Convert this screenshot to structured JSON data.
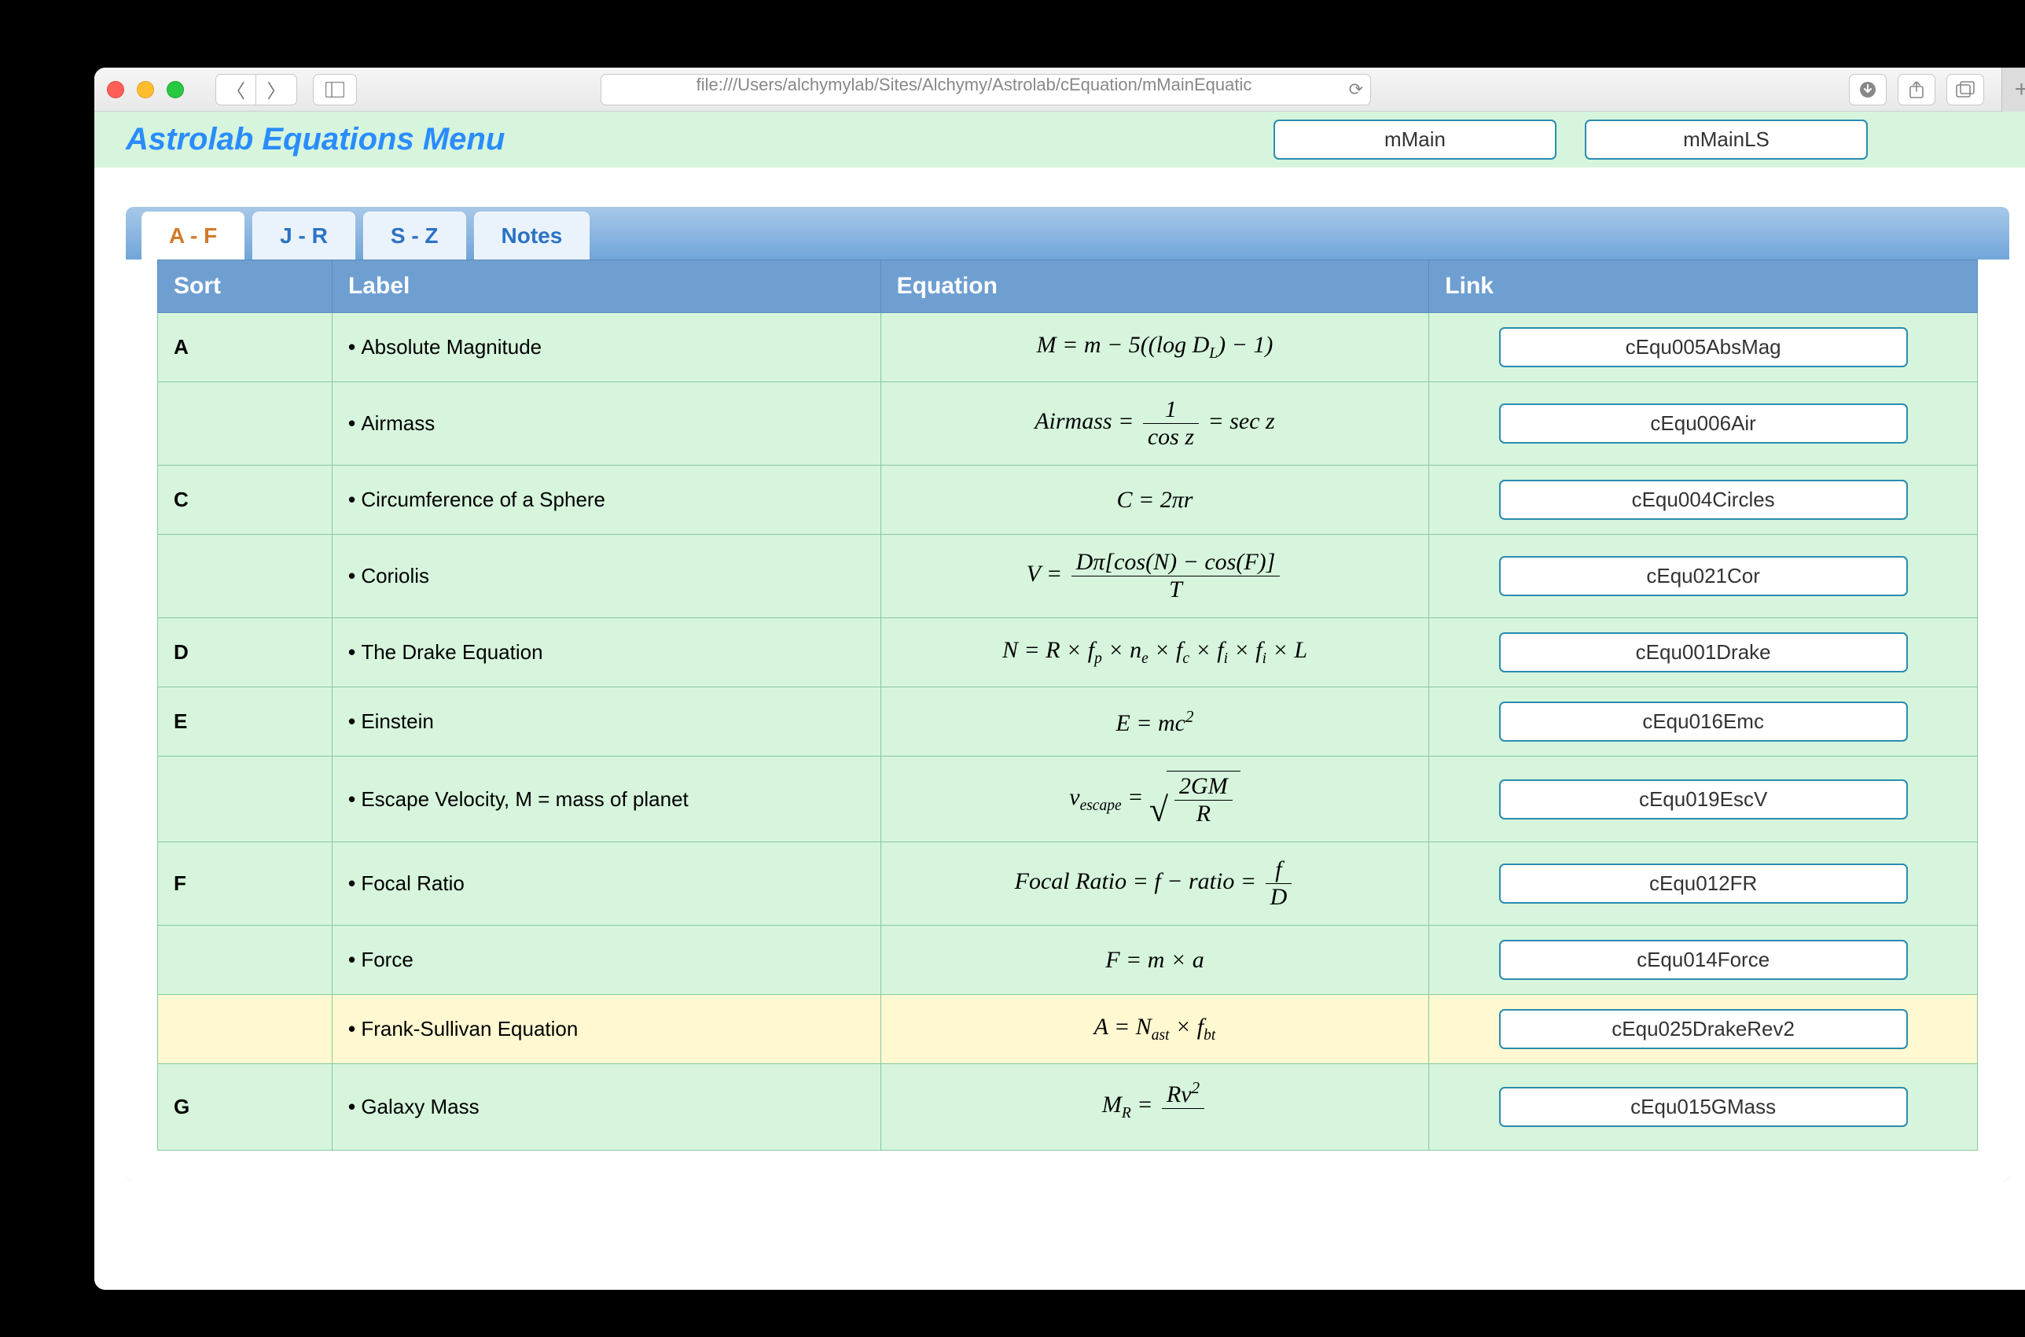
{
  "browser": {
    "url": "file:///Users/alchymylab/Sites/Alchymy/Astrolab/cEquation/mMainEquatic"
  },
  "header": {
    "title": "Astrolab Equations Menu",
    "buttons": [
      "mMain",
      "mMainLS"
    ]
  },
  "tabs": {
    "items": [
      "A - F",
      "J - R",
      "S - Z",
      "Notes"
    ],
    "active_index": 0
  },
  "columns": [
    "Sort",
    "Label",
    "Equation",
    "Link"
  ],
  "rows": [
    {
      "sort": "A",
      "label": "Absolute Magnitude",
      "eq_html": "<span class='eq'><i>M</i> = <i>m</i> − 5((log <i>D<sub>L</sub></i>) − 1)</span>",
      "link": "cEqu005AbsMag",
      "alt": false
    },
    {
      "sort": "",
      "label": "Airmass",
      "eq_html": "<span class='eq'><i>Airmass</i> = <span class='frac'><span class='num'>1</span><span class='den'>cos <i>z</i></span></span> = <i>sec z</i></span>",
      "link": "cEqu006Air",
      "alt": false
    },
    {
      "sort": "C",
      "label": "Circumference of a Sphere",
      "eq_html": "<span class='eq'><i>C</i> = 2<i>πr</i></span>",
      "link": "cEqu004Circles",
      "alt": false
    },
    {
      "sort": "",
      "label": "Coriolis",
      "eq_html": "<span class='eq'><i>V</i> = <span class='frac'><span class='num'><i>Dπ</i>[<i>cos</i>(<i>N</i>) − <i>cos</i>(<i>F</i>)]</span><span class='den'><i>T</i></span></span></span>",
      "link": "cEqu021Cor",
      "alt": false
    },
    {
      "sort": "D",
      "label": "The Drake Equation",
      "eq_html": "<span class='eq'><i>N</i> = <i>R</i> × <i>f<sub>p</sub></i> × <i>n<sub>e</sub></i> × <i>f<sub>c</sub></i> × <i>f<sub>i</sub></i> × <i>f<sub>i</sub></i> × <i>L</i></span>",
      "link": "cEqu001Drake",
      "alt": false
    },
    {
      "sort": "E",
      "label": "Einstein",
      "eq_html": "<span class='eq'><i>E</i> = <i>mc</i><sup>2</sup></span>",
      "link": "cEqu016Emc",
      "alt": false
    },
    {
      "sort": "",
      "label": "Escape Velocity, M = mass of planet",
      "eq_html": "<span class='eq'><i>v<sub>escape</sub></i> = <span class='sqrt-wrap'><span class='sqrt-sym'>√</span><span class='sqrt-body'><span class='frac'><span class='num'>2<i>GM</i></span><span class='den'><i>R</i></span></span></span></span></span>",
      "link": "cEqu019EscV",
      "alt": false
    },
    {
      "sort": "F",
      "label": "Focal Ratio",
      "eq_html": "<span class='eq'><i>Focal Ratio</i> = <i>f</i> − <i>ratio</i> = <span class='frac'><span class='num'><i>f</i></span><span class='den'><i>D</i></span></span></span>",
      "link": "cEqu012FR",
      "alt": false
    },
    {
      "sort": "",
      "label": "Force",
      "eq_html": "<span class='eq'><i>F</i> = <i>m</i> × <i>a</i></span>",
      "link": "cEqu014Force",
      "alt": false
    },
    {
      "sort": "",
      "label": "Frank-Sullivan Equation",
      "eq_html": "<span class='eq'><i>A</i> = <i>N<sub>ast</sub></i> × <i>f<sub>bt</sub></i></span>",
      "link": "cEqu025DrakeRev2",
      "alt": true
    },
    {
      "sort": "G",
      "label": "Galaxy Mass",
      "eq_html": "<span class='eq'><i>M<sub>R</sub></i> = <span class='frac'><span class='num'><i>Rv</i><sup>2</sup></span><span class='den'>&nbsp;</span></span></span>",
      "link": "cEqu015GMass",
      "alt": false
    }
  ],
  "colors": {
    "page_bg": "#000000",
    "header_bg": "#d6f5dc",
    "title_color": "#2a8cff",
    "tab_active_color": "#d27a28",
    "tab_inactive_color": "#2a72c4",
    "thead_bg": "#6f9fd1",
    "row_bg": "#d6f5dc",
    "row_alt_bg": "#fff8d0",
    "cell_border": "#88c8a0",
    "button_border": "#2a8cb0"
  }
}
